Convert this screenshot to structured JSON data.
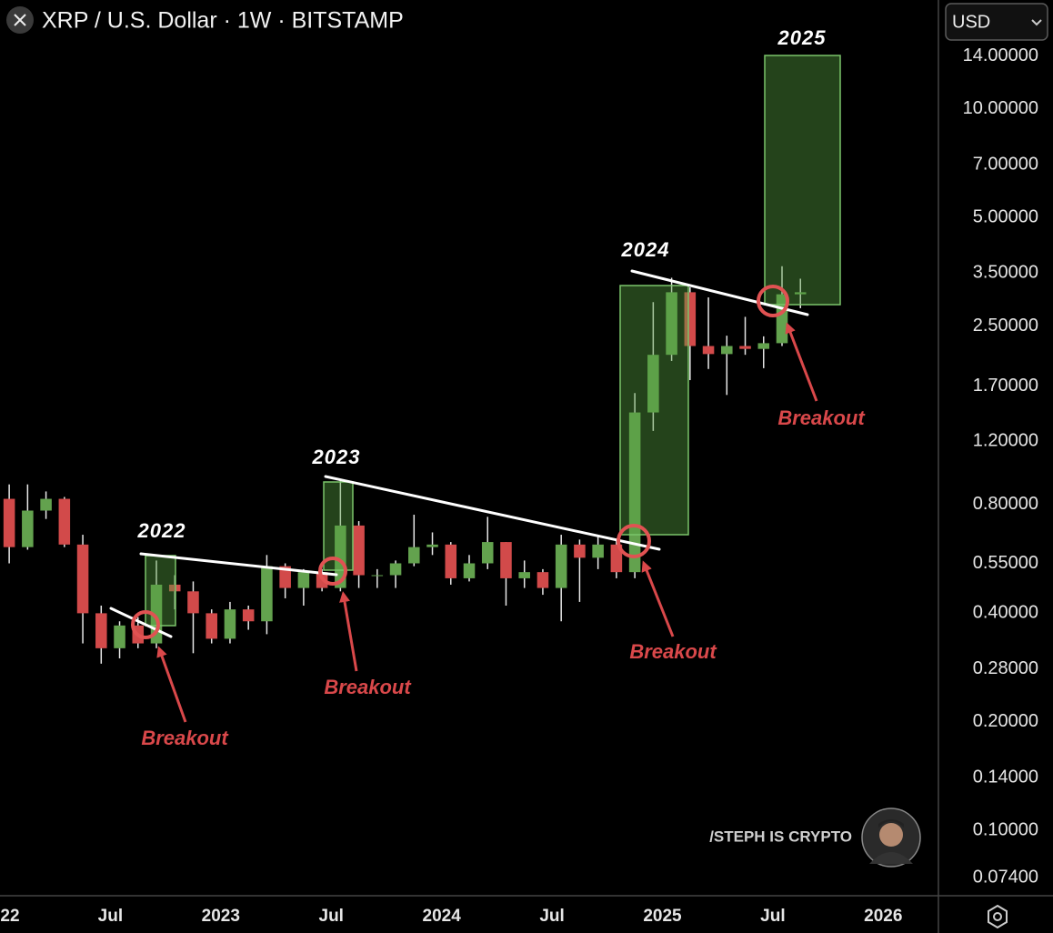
{
  "chart_data": {
    "type": "candlestick",
    "title": "XRP / U.S. Dollar · 1W · BITSTAMP",
    "currency": "USD",
    "x": [
      "2022-01",
      "2022-02",
      "2022-03",
      "2022-04",
      "2022-05",
      "2022-06",
      "2022-07",
      "2022-08",
      "2022-09",
      "2022-10",
      "2022-11",
      "2022-12",
      "2023-01",
      "2023-02",
      "2023-03",
      "2023-04",
      "2023-05",
      "2023-06",
      "2023-07",
      "2023-08",
      "2023-09",
      "2023-10",
      "2023-11",
      "2023-12",
      "2024-01",
      "2024-02",
      "2024-03",
      "2024-04",
      "2024-05",
      "2024-06",
      "2024-07",
      "2024-08",
      "2024-09",
      "2024-10",
      "2024-11",
      "2024-12",
      "2025-01",
      "2025-02",
      "2025-03",
      "2025-04",
      "2025-05",
      "2025-06",
      "2025-07",
      "2025-08"
    ],
    "open": [
      0.83,
      0.61,
      0.77,
      0.83,
      0.62,
      0.4,
      0.32,
      0.37,
      0.33,
      0.48,
      0.46,
      0.4,
      0.34,
      0.41,
      0.38,
      0.54,
      0.47,
      0.52,
      0.47,
      0.7,
      0.51,
      0.51,
      0.55,
      0.61,
      0.62,
      0.5,
      0.55,
      0.63,
      0.5,
      0.52,
      0.47,
      0.62,
      0.57,
      0.62,
      0.52,
      1.44,
      2.08,
      3.1,
      2.2,
      2.09,
      2.2,
      2.16,
      2.24,
      3.06
    ],
    "high": [
      0.91,
      0.91,
      0.87,
      0.84,
      0.66,
      0.42,
      0.38,
      0.39,
      0.56,
      0.51,
      0.49,
      0.41,
      0.43,
      0.42,
      0.58,
      0.55,
      0.53,
      0.53,
      0.94,
      0.72,
      0.53,
      0.56,
      0.75,
      0.67,
      0.63,
      0.58,
      0.74,
      0.63,
      0.56,
      0.53,
      0.66,
      0.64,
      0.66,
      0.64,
      1.63,
      2.91,
      3.4,
      3.2,
      3.0,
      2.35,
      2.65,
      2.34,
      3.66,
      3.38
    ],
    "low": [
      0.55,
      0.6,
      0.73,
      0.61,
      0.33,
      0.29,
      0.3,
      0.32,
      0.32,
      0.41,
      0.31,
      0.33,
      0.33,
      0.36,
      0.35,
      0.44,
      0.42,
      0.46,
      0.46,
      0.47,
      0.47,
      0.47,
      0.54,
      0.58,
      0.48,
      0.49,
      0.53,
      0.42,
      0.47,
      0.45,
      0.38,
      0.43,
      0.53,
      0.5,
      0.5,
      1.28,
      2.0,
      1.77,
      1.9,
      1.61,
      2.08,
      1.91,
      2.2,
      2.8
    ],
    "close": [
      0.61,
      0.77,
      0.83,
      0.62,
      0.4,
      0.32,
      0.37,
      0.33,
      0.48,
      0.46,
      0.4,
      0.34,
      0.41,
      0.38,
      0.54,
      0.47,
      0.52,
      0.47,
      0.7,
      0.51,
      0.51,
      0.55,
      0.61,
      0.62,
      0.5,
      0.55,
      0.63,
      0.5,
      0.52,
      0.47,
      0.62,
      0.57,
      0.62,
      0.52,
      1.44,
      2.08,
      3.1,
      2.2,
      2.09,
      2.2,
      2.16,
      2.24,
      3.06,
      3.1
    ],
    "up_color": "#63a24e",
    "down_color": "#d24a4a",
    "log_scale": true,
    "grid": false,
    "ylim": [
      0.066,
      20
    ],
    "yticks": [
      {
        "value": 14,
        "label": "14.00000"
      },
      {
        "value": 10,
        "label": "10.00000"
      },
      {
        "value": 7,
        "label": "7.00000"
      },
      {
        "value": 5,
        "label": "5.00000"
      },
      {
        "value": 3.5,
        "label": "3.50000"
      },
      {
        "value": 2.5,
        "label": "2.50000"
      },
      {
        "value": 1.7,
        "label": "1.70000"
      },
      {
        "value": 1.2,
        "label": "1.20000"
      },
      {
        "value": 0.8,
        "label": "0.80000"
      },
      {
        "value": 0.55,
        "label": "0.55000"
      },
      {
        "value": 0.4,
        "label": "0.40000"
      },
      {
        "value": 0.28,
        "label": "0.28000"
      },
      {
        "value": 0.2,
        "label": "0.20000"
      },
      {
        "value": 0.14,
        "label": "0.14000"
      },
      {
        "value": 0.1,
        "label": "0.10000"
      },
      {
        "value": 0.074,
        "label": "0.07400"
      }
    ],
    "xlim": [
      "2022-01",
      "2026-04"
    ],
    "xticks": [
      {
        "value": "2022-01",
        "label": "22"
      },
      {
        "value": "2022-07",
        "label": "Jul"
      },
      {
        "value": "2023-01",
        "label": "2023"
      },
      {
        "value": "2023-07",
        "label": "Jul"
      },
      {
        "value": "2024-01",
        "label": "2024"
      },
      {
        "value": "2024-07",
        "label": "Jul"
      },
      {
        "value": "2025-01",
        "label": "2025"
      },
      {
        "value": "2025-07",
        "label": "Jul"
      },
      {
        "value": "2026-01",
        "label": "2026"
      }
    ],
    "annotations": [
      "2022",
      "2023",
      "2024",
      "2025",
      "Breakout",
      "Breakout",
      "Breakout",
      "Breakout"
    ],
    "watermark": "/STEPH IS CRYPTO"
  }
}
